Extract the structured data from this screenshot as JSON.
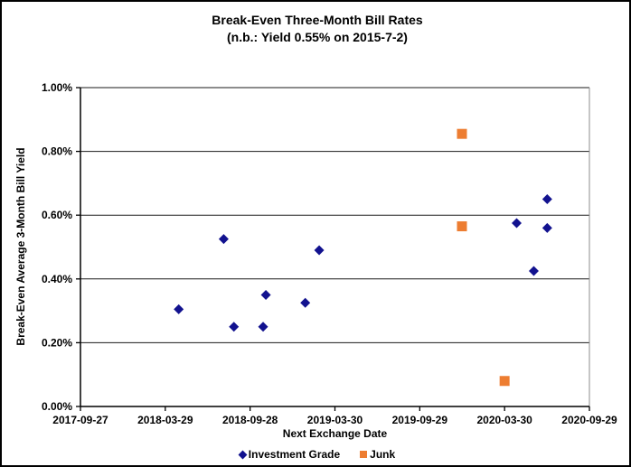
{
  "chart_data": {
    "type": "scatter",
    "title": "Break-Even Three-Month Bill Rates",
    "subtitle": "(n.b.: Yield 0.55% on 2015-7-2)",
    "xlabel": "Next Exchange Date",
    "ylabel": "Break-Even Average 3-Month Bill Yield",
    "x_ticks": [
      "2017-09-27",
      "2018-03-29",
      "2018-09-28",
      "2019-03-30",
      "2019-09-29",
      "2020-03-30",
      "2020-09-29"
    ],
    "y_ticks": [
      "0.00%",
      "0.20%",
      "0.40%",
      "0.60%",
      "0.80%",
      "1.00%"
    ],
    "xlim": [
      "2017-09-27",
      "2020-09-29"
    ],
    "ylim": [
      0,
      1
    ],
    "y_unit": "percent",
    "grid": "horizontal-only",
    "legend_position": "bottom",
    "colors": {
      "axis": "#000000",
      "gridline": "#1a1a1a",
      "plot_right_border": "#8c8c8c"
    },
    "series": [
      {
        "name": "Investment Grade",
        "marker": "diamond",
        "color": "#12128F",
        "points": [
          {
            "x": "2018-04-27",
            "y": 0.305
          },
          {
            "x": "2018-08-02",
            "y": 0.525
          },
          {
            "x": "2018-08-24",
            "y": 0.25
          },
          {
            "x": "2018-10-26",
            "y": 0.25
          },
          {
            "x": "2018-11-01",
            "y": 0.35
          },
          {
            "x": "2019-01-25",
            "y": 0.325
          },
          {
            "x": "2019-02-24",
            "y": 0.49
          },
          {
            "x": "2020-04-25",
            "y": 0.575
          },
          {
            "x": "2020-06-01",
            "y": 0.425
          },
          {
            "x": "2020-06-30",
            "y": 0.65
          },
          {
            "x": "2020-06-30",
            "y": 0.56
          }
        ]
      },
      {
        "name": "Junk",
        "marker": "square",
        "color": "#ED7D31",
        "points": [
          {
            "x": "2019-12-29",
            "y": 0.855
          },
          {
            "x": "2019-12-29",
            "y": 0.565
          },
          {
            "x": "2020-03-30",
            "y": 0.08
          }
        ]
      }
    ]
  }
}
